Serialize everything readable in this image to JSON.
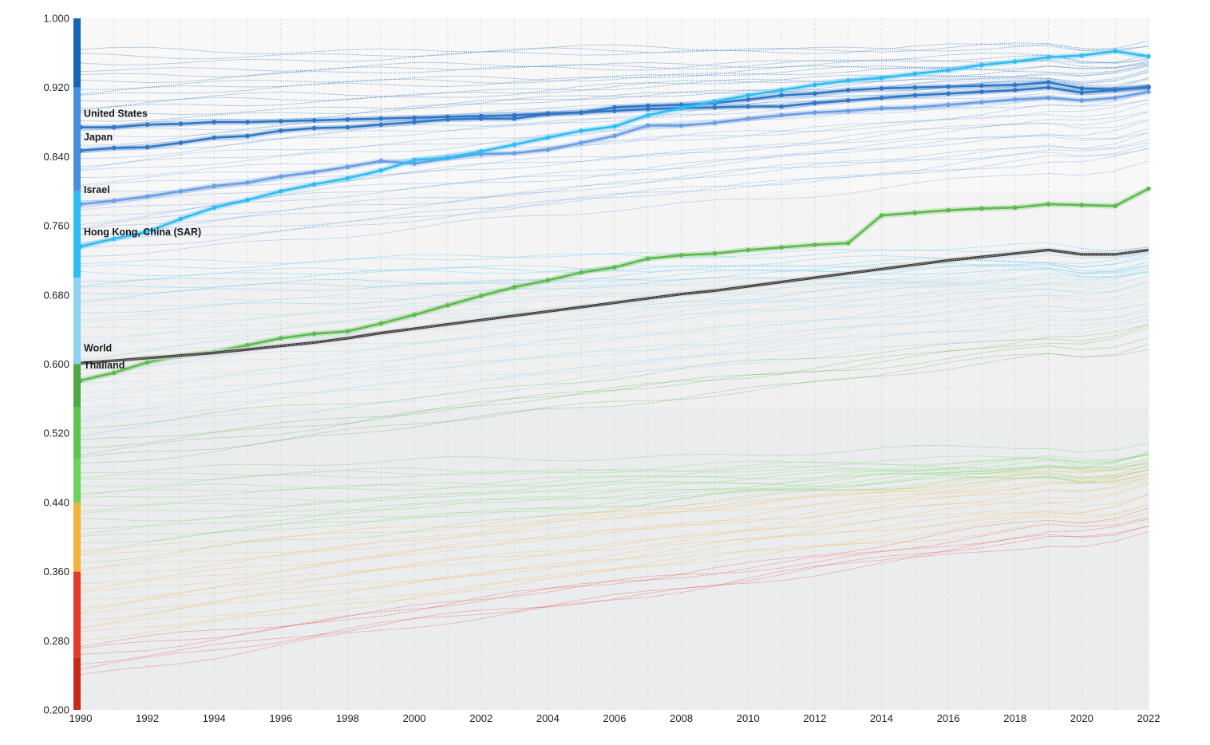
{
  "chart_data": {
    "type": "line",
    "title": "",
    "xlabel": "",
    "ylabel": "",
    "xlim": [
      1990,
      2022
    ],
    "ylim": [
      0.2,
      1.0
    ],
    "grid": "vertical dashed lines each year",
    "legend": "none; labels at left edge of highlighted series",
    "x_ticks": [
      "1990",
      "1992",
      "1994",
      "1996",
      "1998",
      "2000",
      "2002",
      "2004",
      "2006",
      "2008",
      "2010",
      "2012",
      "2014",
      "2016",
      "2018",
      "2020",
      "2022"
    ],
    "y_ticks": [
      "0.200",
      "0.280",
      "0.360",
      "0.440",
      "0.520",
      "0.600",
      "0.680",
      "0.760",
      "0.840",
      "0.920",
      "1.000"
    ],
    "tier_bands": [
      {
        "from": 0.2,
        "to": 0.55,
        "background": "#ebecee"
      },
      {
        "from": 0.55,
        "to": 0.7,
        "background": "#f0f0f1"
      },
      {
        "from": 0.7,
        "to": 0.8,
        "background": "#f4f4f5"
      },
      {
        "from": 0.8,
        "to": 1.0,
        "background": "#f8f8f8"
      }
    ],
    "color_scale": [
      {
        "from": 0.2,
        "to": 0.26,
        "color": "#c92a1e"
      },
      {
        "from": 0.26,
        "to": 0.36,
        "color": "#e8392e"
      },
      {
        "from": 0.36,
        "to": 0.44,
        "color": "#f3b33a"
      },
      {
        "from": 0.44,
        "to": 0.49,
        "color": "#6bd35b"
      },
      {
        "from": 0.49,
        "to": 0.55,
        "color": "#5dc550"
      },
      {
        "from": 0.55,
        "to": 0.6,
        "color": "#4ea944"
      },
      {
        "from": 0.6,
        "to": 0.7,
        "color": "#8fd3f0"
      },
      {
        "from": 0.7,
        "to": 0.8,
        "color": "#2ebcf4"
      },
      {
        "from": 0.8,
        "to": 0.92,
        "color": "#4a8fde"
      },
      {
        "from": 0.92,
        "to": 1.0,
        "color": "#1566b7"
      }
    ],
    "x": [
      1990,
      1991,
      1992,
      1993,
      1994,
      1995,
      1996,
      1997,
      1998,
      1999,
      2000,
      2001,
      2002,
      2003,
      2004,
      2005,
      2006,
      2007,
      2008,
      2009,
      2010,
      2011,
      2012,
      2013,
      2014,
      2015,
      2016,
      2017,
      2018,
      2019,
      2020,
      2021,
      2022
    ],
    "series": [
      {
        "name": "United States",
        "color": "#2f76c6",
        "values": [
          0.874,
          0.874,
          0.877,
          0.878,
          0.88,
          0.88,
          0.881,
          0.882,
          0.883,
          0.884,
          0.885,
          0.886,
          0.887,
          0.888,
          0.89,
          0.891,
          0.893,
          0.895,
          0.896,
          0.897,
          0.898,
          0.898,
          0.902,
          0.905,
          0.908,
          0.911,
          0.913,
          0.915,
          0.917,
          0.92,
          0.914,
          0.917,
          0.921
        ]
      },
      {
        "name": "Japan",
        "color": "#2f76c6",
        "values": [
          0.847,
          0.85,
          0.851,
          0.856,
          0.862,
          0.864,
          0.87,
          0.873,
          0.874,
          0.877,
          0.88,
          0.883,
          0.884,
          0.884,
          0.889,
          0.891,
          0.897,
          0.899,
          0.9,
          0.902,
          0.906,
          0.911,
          0.913,
          0.917,
          0.919,
          0.92,
          0.921,
          0.922,
          0.923,
          0.926,
          0.919,
          0.918,
          0.92
        ]
      },
      {
        "name": "Israel",
        "color": "#6a9de3",
        "values": [
          0.785,
          0.789,
          0.794,
          0.8,
          0.806,
          0.81,
          0.817,
          0.822,
          0.828,
          0.835,
          0.832,
          0.838,
          0.843,
          0.844,
          0.848,
          0.856,
          0.864,
          0.876,
          0.876,
          0.879,
          0.884,
          0.888,
          0.891,
          0.893,
          0.896,
          0.897,
          0.9,
          0.903,
          0.906,
          0.908,
          0.905,
          0.908,
          0.915
        ]
      },
      {
        "name": "Hong Kong, China (SAR)",
        "color": "#2ebcf4",
        "values": [
          0.736,
          0.745,
          0.753,
          0.768,
          0.781,
          0.79,
          0.8,
          0.808,
          0.815,
          0.824,
          0.836,
          0.839,
          0.846,
          0.854,
          0.862,
          0.87,
          0.875,
          0.888,
          0.896,
          0.904,
          0.911,
          0.917,
          0.923,
          0.928,
          0.931,
          0.936,
          0.94,
          0.946,
          0.95,
          0.955,
          0.957,
          0.962,
          0.956
        ]
      },
      {
        "name": "Thailand",
        "color": "#5cba4c",
        "values": [
          0.581,
          0.59,
          0.602,
          0.61,
          0.614,
          0.622,
          0.63,
          0.635,
          0.638,
          0.647,
          0.657,
          0.668,
          0.679,
          0.689,
          0.697,
          0.706,
          0.712,
          0.722,
          0.726,
          0.728,
          0.732,
          0.735,
          0.738,
          0.74,
          0.772,
          0.775,
          0.778,
          0.78,
          0.781,
          0.785,
          0.784,
          0.783,
          0.803
        ]
      },
      {
        "name": "World",
        "color": "#555555",
        "values": [
          0.601,
          0.604,
          0.607,
          0.61,
          0.613,
          0.617,
          0.621,
          0.625,
          0.63,
          0.636,
          0.641,
          0.646,
          0.651,
          0.656,
          0.661,
          0.666,
          0.671,
          0.676,
          0.681,
          0.685,
          0.69,
          0.695,
          0.7,
          0.705,
          0.71,
          0.715,
          0.72,
          0.724,
          0.728,
          0.732,
          0.727,
          0.727,
          0.732
        ]
      }
    ],
    "labels": [
      {
        "text": "United States",
        "series": "United States"
      },
      {
        "text": "Japan",
        "series": "Japan"
      },
      {
        "text": "Israel",
        "series": "Israel"
      },
      {
        "text": "Hong Kong, China (SAR)",
        "series": "Hong Kong, China (SAR)"
      },
      {
        "text": "World",
        "series": "World"
      },
      {
        "text": "Thailand",
        "series": "Thailand"
      }
    ],
    "background_series_start_values": [
      0.962,
      0.955,
      0.948,
      0.941,
      0.934,
      0.928,
      0.922,
      0.916,
      0.91,
      0.904,
      0.898,
      0.892,
      0.886,
      0.88,
      0.874,
      0.868,
      0.862,
      0.856,
      0.85,
      0.844,
      0.838,
      0.832,
      0.826,
      0.82,
      0.814,
      0.808,
      0.802,
      0.796,
      0.79,
      0.784,
      0.778,
      0.772,
      0.766,
      0.76,
      0.754,
      0.748,
      0.742,
      0.736,
      0.73,
      0.724,
      0.718,
      0.712,
      0.706,
      0.7,
      0.694,
      0.688,
      0.682,
      0.676,
      0.67,
      0.664,
      0.658,
      0.652,
      0.646,
      0.64,
      0.634,
      0.628,
      0.622,
      0.616,
      0.61,
      0.604,
      0.598,
      0.592,
      0.586,
      0.58,
      0.574,
      0.568,
      0.562,
      0.556,
      0.55,
      0.544,
      0.538,
      0.532,
      0.526,
      0.52,
      0.514,
      0.508,
      0.502,
      0.496,
      0.49,
      0.484,
      0.478,
      0.472,
      0.466,
      0.46,
      0.454,
      0.448,
      0.442,
      0.436,
      0.43,
      0.424,
      0.418,
      0.412,
      0.406,
      0.4,
      0.394,
      0.388,
      0.382,
      0.376,
      0.37,
      0.364,
      0.358,
      0.352,
      0.346,
      0.34,
      0.334,
      0.328,
      0.322,
      0.316,
      0.31,
      0.304,
      0.298,
      0.292,
      0.286,
      0.28,
      0.274,
      0.268,
      0.262,
      0.256,
      0.25,
      0.24
    ],
    "background_series_growth_per_year": [
      0.0003,
      0.0004,
      0.0005,
      0.0006,
      0.0008,
      0.001,
      0.0012,
      0.0014,
      0.0016,
      0.0018,
      0.002,
      0.0022,
      0.0024,
      0.0026,
      0.0028,
      0.003,
      0.0032,
      0.0034,
      0.0036,
      0.0038,
      0.004,
      0.004,
      0.0041,
      0.0041,
      0.0042,
      0.0042,
      0.0043,
      0.0043,
      0.0044,
      0.0044,
      0.0045,
      0.0045,
      0.0046,
      0.0046,
      0.0047,
      0.0047,
      0.0048,
      0.0048,
      0.0049,
      0.0049
    ]
  }
}
